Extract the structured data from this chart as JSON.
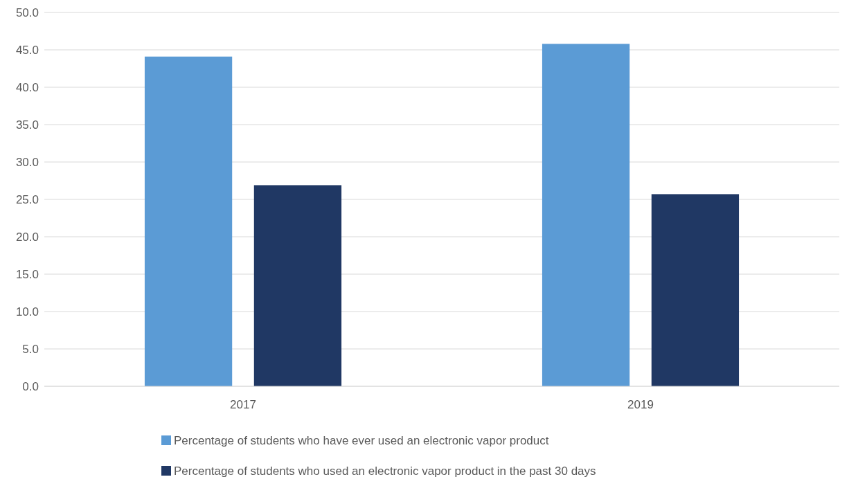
{
  "chart_data": {
    "type": "bar",
    "categories": [
      "2017",
      "2019"
    ],
    "series": [
      {
        "name": "Percentage of students who have ever used an electronic vapor product",
        "color": "#5b9bd5",
        "values": [
          44.1,
          45.8
        ]
      },
      {
        "name": "Percentage of students who used an electronic vapor product in the past 30 days",
        "color": "#203864",
        "values": [
          26.9,
          25.7
        ]
      }
    ],
    "ylim": [
      0,
      50
    ],
    "yticks": [
      {
        "value": 0,
        "label": "0.0"
      },
      {
        "value": 5,
        "label": "5.0"
      },
      {
        "value": 10,
        "label": "10.0"
      },
      {
        "value": 15,
        "label": "15.0"
      },
      {
        "value": 20,
        "label": "20.0"
      },
      {
        "value": 25,
        "label": "25.0"
      },
      {
        "value": 30,
        "label": "30.0"
      },
      {
        "value": 35,
        "label": "35.0"
      },
      {
        "value": 40,
        "label": "40.0"
      },
      {
        "value": 45,
        "label": "45.0"
      },
      {
        "value": 50,
        "label": "50.0"
      }
    ],
    "grid": "y",
    "legend": "bottom"
  }
}
